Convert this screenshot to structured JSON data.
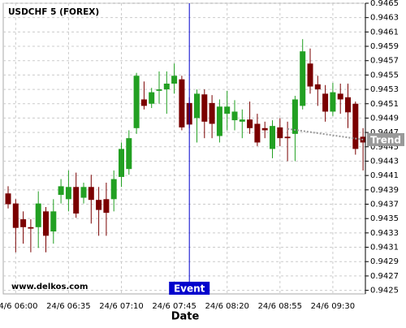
{
  "chart_data": {
    "type": "candlestick",
    "title": "USDCHF 5 (FOREX)",
    "x_label": "Date",
    "watermark": "www.delkos.com",
    "categories": [
      null,
      "24/6 06:00",
      null,
      null,
      null,
      null,
      null,
      null,
      "24/6 06:35",
      null,
      null,
      null,
      null,
      null,
      null,
      "24/6 07:10",
      null,
      null,
      null,
      null,
      null,
      null,
      "24/6 07:45",
      null,
      null,
      null,
      null,
      null,
      null,
      "24/6 08:20",
      null,
      null,
      null,
      null,
      null,
      null,
      "24/6 08:55",
      null,
      null,
      null,
      null,
      null,
      null,
      "24/6 09:30",
      null,
      null,
      null,
      null
    ],
    "open": [
      0.94385,
      0.94371,
      0.94349,
      0.94338,
      0.94338,
      0.9436,
      0.94332,
      0.94383,
      0.94377,
      0.94394,
      0.94379,
      0.94394,
      0.94376,
      0.94377,
      0.94377,
      0.94408,
      0.94419,
      0.94476,
      0.94516,
      0.9451,
      0.94528,
      0.9453,
      0.94538,
      0.94544,
      0.94511,
      0.9449,
      0.94523,
      0.94511,
      0.94465,
      0.94496,
      0.94487,
      0.94485,
      0.94488,
      0.94482,
      0.94476,
      0.94447,
      0.94477,
      0.94464,
      0.94468,
      0.94507,
      0.94566,
      0.94537,
      0.94524,
      0.94499,
      0.94524,
      0.94519,
      0.9451,
      0.94464
    ],
    "high": [
      0.94395,
      0.94377,
      0.9436,
      0.94349,
      0.94388,
      0.94366,
      0.94377,
      0.94405,
      0.94417,
      0.94414,
      0.944,
      0.94411,
      0.94394,
      0.944,
      0.94417,
      0.94456,
      0.94473,
      0.94553,
      0.94541,
      0.94532,
      0.94555,
      0.94555,
      0.94566,
      0.94549,
      0.94519,
      0.9453,
      0.9453,
      0.94522,
      0.94516,
      0.94528,
      0.94515,
      0.94502,
      0.94513,
      0.94496,
      0.94485,
      0.94487,
      0.9449,
      0.94485,
      0.94521,
      0.946,
      0.94587,
      0.94549,
      0.94536,
      0.94539,
      0.94538,
      0.94538,
      0.94513,
      0.94476
    ],
    "low": [
      0.94364,
      0.94303,
      0.94315,
      0.94303,
      0.94309,
      0.94303,
      0.94315,
      0.94371,
      0.9436,
      0.94351,
      0.94371,
      0.94343,
      0.94326,
      0.94326,
      0.9436,
      0.94394,
      0.94411,
      0.94468,
      0.94502,
      0.94504,
      0.9451,
      0.94496,
      0.94524,
      0.94473,
      0.94476,
      0.94456,
      0.94462,
      0.94462,
      0.94456,
      0.94473,
      0.94473,
      0.94462,
      0.94468,
      0.94451,
      0.94462,
      0.94434,
      0.94451,
      0.9443,
      0.9443,
      0.94502,
      0.94524,
      0.94507,
      0.94485,
      0.94493,
      0.94496,
      0.94476,
      0.94439,
      0.94417
    ],
    "close": [
      0.9437,
      0.94337,
      0.94338,
      0.94336,
      0.94371,
      0.94326,
      0.9436,
      0.94395,
      0.94394,
      0.94357,
      0.94394,
      0.94376,
      0.94362,
      0.94358,
      0.94405,
      0.94447,
      0.94462,
      0.94549,
      0.94507,
      0.94526,
      0.9453,
      0.94538,
      0.94549,
      0.94477,
      0.94481,
      0.94524,
      0.94485,
      0.94482,
      0.94506,
      0.94506,
      0.94499,
      0.94488,
      0.94476,
      0.94456,
      0.94473,
      0.94479,
      0.94462,
      0.94462,
      0.94516,
      0.94583,
      0.94534,
      0.9453,
      0.94499,
      0.94526,
      0.94516,
      0.94498,
      0.94447,
      0.94456
    ],
    "up_color": "#22a022",
    "down_color": "#7a0000",
    "ylim": [
      0.94245,
      0.9465
    ],
    "yticks": [
      0.9425,
      0.9427,
      0.9429,
      0.9431,
      0.9433,
      0.9435,
      0.9437,
      0.9439,
      0.9441,
      0.9443,
      0.9445,
      0.9447,
      0.9449,
      0.9451,
      0.9453,
      0.9455,
      0.9457,
      0.9459,
      0.9461,
      0.9463,
      0.9465
    ],
    "grid": true,
    "event": {
      "label": "Event",
      "index": 24,
      "color": "#0000cc"
    },
    "trend": {
      "label": "Trend",
      "start": [
        37,
        0.94475
      ],
      "end": [
        47,
        0.9446
      ],
      "color": "#999999"
    }
  }
}
